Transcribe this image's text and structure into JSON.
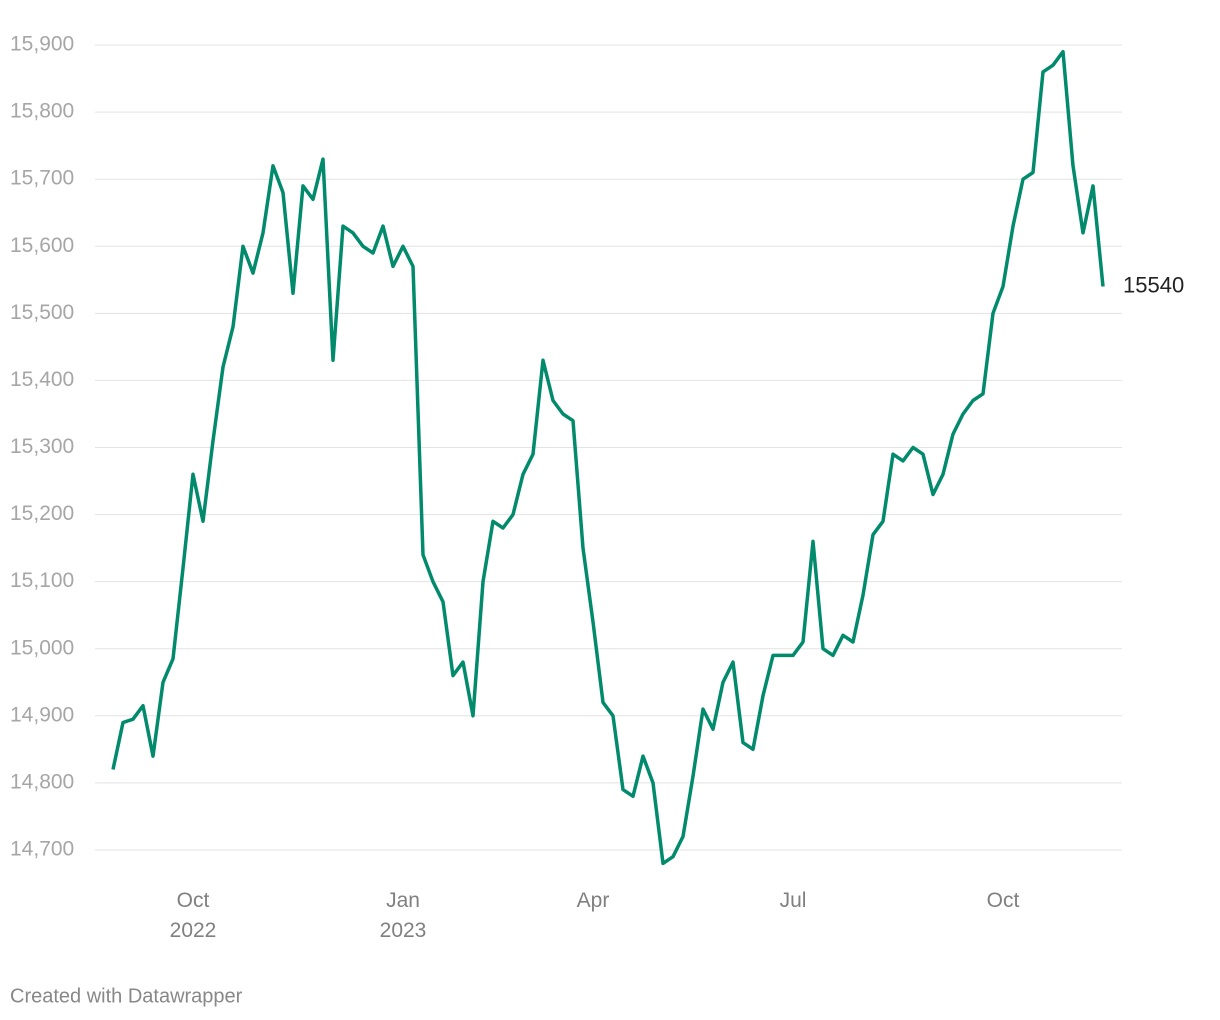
{
  "chart_data": {
    "type": "line",
    "footer": "Created with Datawrapper",
    "categories": [
      null,
      null,
      null,
      null,
      null,
      null,
      null,
      null,
      "Oct 2022",
      null,
      null,
      null,
      null,
      null,
      null,
      null,
      null,
      null,
      null,
      null,
      null,
      null,
      null,
      null,
      null,
      null,
      null,
      null,
      null,
      "Jan 2023",
      null,
      null,
      null,
      null,
      null,
      null,
      null,
      null,
      null,
      null,
      null,
      null,
      null,
      null,
      null,
      null,
      null,
      null,
      "Apr",
      null,
      null,
      null,
      null,
      null,
      null,
      null,
      null,
      null,
      null,
      null,
      null,
      null,
      null,
      null,
      null,
      null,
      null,
      null,
      "Jul",
      null,
      null,
      null,
      null,
      null,
      null,
      null,
      null,
      null,
      null,
      null,
      null,
      null,
      null,
      null,
      null,
      null,
      null,
      null,
      null,
      "Oct",
      null,
      null,
      null,
      null,
      null,
      null,
      null,
      null,
      null,
      null
    ],
    "series": [
      {
        "color": "#028a6c",
        "values": [
          14820,
          14890,
          14895,
          14915,
          14840,
          14950,
          14985,
          15120,
          15260,
          15190,
          15310,
          15420,
          15480,
          15600,
          15560,
          15620,
          15720,
          15680,
          15530,
          15690,
          15670,
          15730,
          15430,
          15630,
          15620,
          15600,
          15590,
          15630,
          15570,
          15600,
          15570,
          15140,
          15100,
          15070,
          14960,
          14980,
          14900,
          15100,
          15190,
          15180,
          15200,
          15260,
          15290,
          15430,
          15370,
          15350,
          15340,
          15150,
          15040,
          14920,
          14900,
          14790,
          14780,
          14840,
          14800,
          14680,
          14690,
          14720,
          14810,
          14910,
          14880,
          14950,
          14980,
          14860,
          14850,
          14930,
          14990,
          14990,
          14990,
          15010,
          15160,
          15000,
          14990,
          15020,
          15010,
          15080,
          15170,
          15190,
          15290,
          15280,
          15300,
          15290,
          15230,
          15260,
          15320,
          15350,
          15370,
          15380,
          15500,
          15540,
          15630,
          15700,
          15710,
          15860,
          15870,
          15890,
          15720,
          15620,
          15690,
          15540
        ]
      }
    ],
    "ylim": [
      14650,
      15950
    ],
    "yticks": [
      {
        "value": 14700,
        "label": "14,700"
      },
      {
        "value": 14800,
        "label": "14,800"
      },
      {
        "value": 14900,
        "label": "14,900"
      },
      {
        "value": 15000,
        "label": "15,000"
      },
      {
        "value": 15100,
        "label": "15,100"
      },
      {
        "value": 15200,
        "label": "15,200"
      },
      {
        "value": 15300,
        "label": "15,300"
      },
      {
        "value": 15400,
        "label": "15,400"
      },
      {
        "value": 15500,
        "label": "15,500"
      },
      {
        "value": 15600,
        "label": "15,600"
      },
      {
        "value": 15700,
        "label": "15,700"
      },
      {
        "value": 15800,
        "label": "15,800"
      },
      {
        "value": 15900,
        "label": "15,900"
      }
    ],
    "grid": true
  }
}
